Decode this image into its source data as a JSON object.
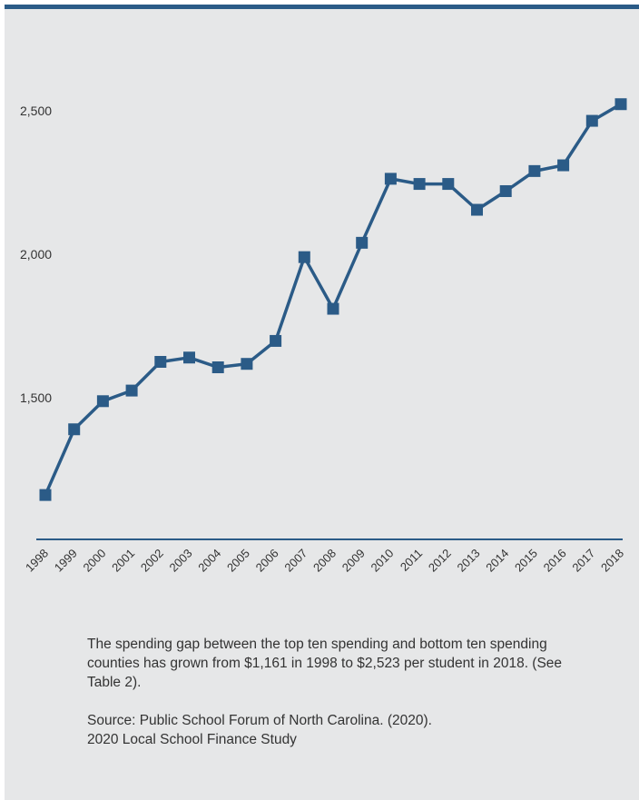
{
  "chart_data": {
    "type": "line",
    "x": [
      "1998",
      "1999",
      "2000",
      "2001",
      "2002",
      "2003",
      "2004",
      "2005",
      "2006",
      "2007",
      "2008",
      "2009",
      "2010",
      "2011",
      "2012",
      "2013",
      "2014",
      "2015",
      "2016",
      "2017",
      "2018"
    ],
    "series": [
      {
        "values": [
          1161,
          1390,
          1488,
          1525,
          1625,
          1640,
          1606,
          1618,
          1698,
          1990,
          1810,
          2040,
          2263,
          2245,
          2245,
          2155,
          2220,
          2290,
          2310,
          2465,
          2523
        ]
      }
    ],
    "ytick_values": [
      1500,
      2000,
      2500
    ],
    "ytick_labels": [
      "1,500",
      "2,000",
      "2,500"
    ],
    "ylim": [
      1100,
      2700
    ],
    "title": "",
    "xlabel": "",
    "ylabel": "",
    "grid": false,
    "colors": {
      "line": "#2b5b87",
      "axis": "#2b5b87",
      "background": "#e6e7e8"
    }
  },
  "caption": {
    "text": "The spending gap between the top ten spending and bottom ten spending counties has grown from $1,161 in 1998 to $2,523 per student in 2018. (See Table 2).",
    "source_line1": "Source: Public School Forum of North Carolina. (2020).",
    "source_line2": "2020 Local School Finance Study"
  }
}
